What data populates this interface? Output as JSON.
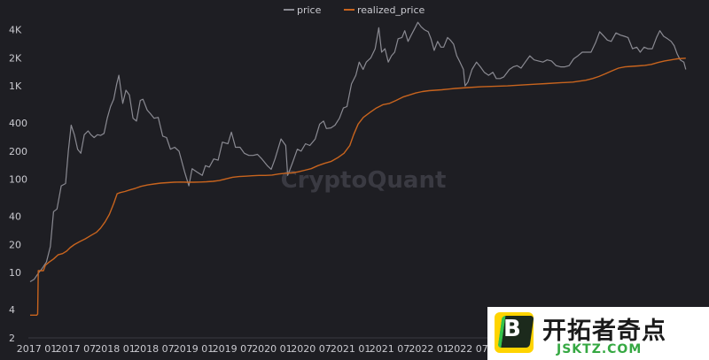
{
  "chart_data": {
    "type": "line",
    "title": "",
    "xlabel": "",
    "ylabel": "",
    "y_scale": "log",
    "ylim": [
      2,
      6000
    ],
    "y_ticks": [
      {
        "value": 2,
        "label": "2"
      },
      {
        "value": 4,
        "label": "4"
      },
      {
        "value": 10,
        "label": "10"
      },
      {
        "value": 20,
        "label": "20"
      },
      {
        "value": 40,
        "label": "40"
      },
      {
        "value": 100,
        "label": "100"
      },
      {
        "value": 200,
        "label": "200"
      },
      {
        "value": 400,
        "label": "400"
      },
      {
        "value": 1000,
        "label": "1K"
      },
      {
        "value": 2000,
        "label": "2K"
      },
      {
        "value": 4000,
        "label": "4K"
      }
    ],
    "x_ticks": [
      "2017 01",
      "2017 07",
      "2018 01",
      "2018 07",
      "2019 01",
      "2019 07",
      "2020 01",
      "2020 07",
      "2021 01",
      "2021 07",
      "2022 01",
      "2022 07"
    ],
    "legend": {
      "placement": "top-center",
      "entries": [
        "price",
        "realized_price"
      ]
    },
    "grid": false,
    "series": [
      {
        "name": "price",
        "color": "#8a8a92",
        "points": [
          [
            "2016-12-01",
            8
          ],
          [
            "2016-12-20",
            8.5
          ],
          [
            "2017-01-10",
            10
          ],
          [
            "2017-01-25",
            11
          ],
          [
            "2017-02-15",
            13
          ],
          [
            "2017-03-05",
            19
          ],
          [
            "2017-03-20",
            45
          ],
          [
            "2017-04-05",
            48
          ],
          [
            "2017-04-25",
            85
          ],
          [
            "2017-05-15",
            90
          ],
          [
            "2017-05-28",
            200
          ],
          [
            "2017-06-10",
            380
          ],
          [
            "2017-06-25",
            300
          ],
          [
            "2017-07-10",
            210
          ],
          [
            "2017-07-25",
            190
          ],
          [
            "2017-08-10",
            300
          ],
          [
            "2017-08-28",
            330
          ],
          [
            "2017-09-10",
            300
          ],
          [
            "2017-09-25",
            280
          ],
          [
            "2017-10-10",
            300
          ],
          [
            "2017-10-25",
            295
          ],
          [
            "2017-11-10",
            310
          ],
          [
            "2017-11-25",
            450
          ],
          [
            "2017-12-10",
            600
          ],
          [
            "2017-12-25",
            720
          ],
          [
            "2018-01-08",
            1050
          ],
          [
            "2018-01-18",
            1300
          ],
          [
            "2018-02-05",
            650
          ],
          [
            "2018-02-20",
            900
          ],
          [
            "2018-03-08",
            800
          ],
          [
            "2018-03-25",
            450
          ],
          [
            "2018-04-10",
            420
          ],
          [
            "2018-04-28",
            700
          ],
          [
            "2018-05-10",
            720
          ],
          [
            "2018-05-30",
            550
          ],
          [
            "2018-06-15",
            500
          ],
          [
            "2018-07-01",
            450
          ],
          [
            "2018-07-20",
            460
          ],
          [
            "2018-08-10",
            290
          ],
          [
            "2018-08-28",
            280
          ],
          [
            "2018-09-15",
            210
          ],
          [
            "2018-10-05",
            220
          ],
          [
            "2018-10-25",
            200
          ],
          [
            "2018-11-20",
            120
          ],
          [
            "2018-12-10",
            85
          ],
          [
            "2018-12-25",
            130
          ],
          [
            "2019-01-15",
            120
          ],
          [
            "2019-02-10",
            110
          ],
          [
            "2019-02-25",
            140
          ],
          [
            "2019-03-15",
            135
          ],
          [
            "2019-04-05",
            165
          ],
          [
            "2019-04-25",
            160
          ],
          [
            "2019-05-15",
            250
          ],
          [
            "2019-06-10",
            240
          ],
          [
            "2019-06-26",
            320
          ],
          [
            "2019-07-15",
            220
          ],
          [
            "2019-08-05",
            220
          ],
          [
            "2019-08-25",
            190
          ],
          [
            "2019-09-15",
            180
          ],
          [
            "2019-10-05",
            180
          ],
          [
            "2019-10-25",
            185
          ],
          [
            "2019-11-15",
            165
          ],
          [
            "2019-12-10",
            140
          ],
          [
            "2019-12-28",
            128
          ],
          [
            "2020-01-15",
            165
          ],
          [
            "2020-02-12",
            270
          ],
          [
            "2020-03-05",
            230
          ],
          [
            "2020-03-14",
            110
          ],
          [
            "2020-04-05",
            150
          ],
          [
            "2020-04-28",
            210
          ],
          [
            "2020-05-15",
            200
          ],
          [
            "2020-06-05",
            240
          ],
          [
            "2020-06-25",
            230
          ],
          [
            "2020-07-20",
            270
          ],
          [
            "2020-08-10",
            390
          ],
          [
            "2020-08-28",
            420
          ],
          [
            "2020-09-10",
            350
          ],
          [
            "2020-10-01",
            355
          ],
          [
            "2020-10-20",
            380
          ],
          [
            "2020-11-10",
            450
          ],
          [
            "2020-11-28",
            580
          ],
          [
            "2020-12-15",
            600
          ],
          [
            "2021-01-05",
            1050
          ],
          [
            "2021-01-25",
            1300
          ],
          [
            "2021-02-10",
            1800
          ],
          [
            "2021-02-28",
            1500
          ],
          [
            "2021-03-15",
            1800
          ],
          [
            "2021-04-05",
            2000
          ],
          [
            "2021-04-25",
            2500
          ],
          [
            "2021-05-12",
            4200
          ],
          [
            "2021-05-25",
            2300
          ],
          [
            "2021-06-10",
            2500
          ],
          [
            "2021-06-25",
            1800
          ],
          [
            "2021-07-10",
            2100
          ],
          [
            "2021-07-25",
            2300
          ],
          [
            "2021-08-10",
            3200
          ],
          [
            "2021-08-28",
            3300
          ],
          [
            "2021-09-10",
            3900
          ],
          [
            "2021-09-25",
            3000
          ],
          [
            "2021-10-10",
            3500
          ],
          [
            "2021-10-28",
            4200
          ],
          [
            "2021-11-10",
            4800
          ],
          [
            "2021-11-25",
            4300
          ],
          [
            "2021-12-10",
            4000
          ],
          [
            "2021-12-28",
            3800
          ],
          [
            "2022-01-10",
            3200
          ],
          [
            "2022-01-25",
            2400
          ],
          [
            "2022-02-10",
            3000
          ],
          [
            "2022-02-25",
            2600
          ],
          [
            "2022-03-10",
            2600
          ],
          [
            "2022-03-28",
            3300
          ],
          [
            "2022-04-10",
            3100
          ],
          [
            "2022-04-25",
            2800
          ],
          [
            "2022-05-10",
            2100
          ],
          [
            "2022-05-25",
            1800
          ],
          [
            "2022-06-10",
            1500
          ],
          [
            "2022-06-18",
            1000
          ],
          [
            "2022-07-01",
            1100
          ],
          [
            "2022-07-20",
            1500
          ],
          [
            "2022-08-10",
            1800
          ],
          [
            "2022-08-28",
            1600
          ],
          [
            "2022-09-15",
            1400
          ],
          [
            "2022-10-05",
            1300
          ],
          [
            "2022-10-25",
            1400
          ],
          [
            "2022-11-10",
            1200
          ],
          [
            "2022-11-28",
            1200
          ],
          [
            "2022-12-15",
            1250
          ],
          [
            "2023-01-10",
            1500
          ],
          [
            "2023-01-28",
            1600
          ],
          [
            "2023-02-15",
            1650
          ],
          [
            "2023-03-05",
            1550
          ],
          [
            "2023-03-25",
            1800
          ],
          [
            "2023-04-15",
            2100
          ],
          [
            "2023-05-05",
            1900
          ],
          [
            "2023-05-25",
            1850
          ],
          [
            "2023-06-15",
            1800
          ],
          [
            "2023-07-05",
            1900
          ],
          [
            "2023-07-25",
            1850
          ],
          [
            "2023-08-15",
            1650
          ],
          [
            "2023-09-05",
            1600
          ],
          [
            "2023-09-25",
            1600
          ],
          [
            "2023-10-15",
            1650
          ],
          [
            "2023-11-05",
            1950
          ],
          [
            "2023-11-25",
            2100
          ],
          [
            "2023-12-15",
            2300
          ],
          [
            "2024-01-05",
            2300
          ],
          [
            "2024-01-25",
            2300
          ],
          [
            "2024-02-15",
            2900
          ],
          [
            "2024-03-05",
            3800
          ],
          [
            "2024-03-20",
            3500
          ],
          [
            "2024-04-10",
            3100
          ],
          [
            "2024-04-28",
            3000
          ],
          [
            "2024-05-20",
            3700
          ],
          [
            "2024-06-10",
            3500
          ],
          [
            "2024-06-28",
            3400
          ],
          [
            "2024-07-15",
            3300
          ],
          [
            "2024-08-05",
            2500
          ],
          [
            "2024-08-25",
            2600
          ],
          [
            "2024-09-10",
            2300
          ],
          [
            "2024-09-28",
            2600
          ],
          [
            "2024-10-15",
            2500
          ],
          [
            "2024-11-05",
            2500
          ],
          [
            "2024-11-25",
            3300
          ],
          [
            "2024-12-10",
            3900
          ],
          [
            "2024-12-28",
            3400
          ],
          [
            "2025-01-15",
            3200
          ],
          [
            "2025-02-01",
            3000
          ],
          [
            "2025-02-15",
            2700
          ],
          [
            "2025-03-01",
            2200
          ],
          [
            "2025-03-15",
            1900
          ],
          [
            "2025-04-01",
            1800
          ],
          [
            "2025-04-10",
            1500
          ]
        ]
      },
      {
        "name": "realized_price",
        "color": "#c8641e",
        "points": [
          [
            "2016-12-01",
            3.5
          ],
          [
            "2017-01-01",
            3.5
          ],
          [
            "2017-01-05",
            3.6
          ],
          [
            "2017-01-08",
            10.5
          ],
          [
            "2017-02-01",
            10.5
          ],
          [
            "2017-02-10",
            12
          ],
          [
            "2017-02-28",
            13
          ],
          [
            "2017-03-20",
            14
          ],
          [
            "2017-04-10",
            15.5
          ],
          [
            "2017-05-01",
            16
          ],
          [
            "2017-05-20",
            17
          ],
          [
            "2017-06-05",
            18.5
          ],
          [
            "2017-06-25",
            20
          ],
          [
            "2017-07-20",
            21.5
          ],
          [
            "2017-08-15",
            23
          ],
          [
            "2017-09-10",
            25
          ],
          [
            "2017-10-05",
            27
          ],
          [
            "2017-10-25",
            30
          ],
          [
            "2017-11-15",
            35
          ],
          [
            "2017-12-05",
            42
          ],
          [
            "2017-12-25",
            55
          ],
          [
            "2018-01-10",
            70
          ],
          [
            "2018-01-25",
            72
          ],
          [
            "2018-02-15",
            74
          ],
          [
            "2018-03-10",
            77
          ],
          [
            "2018-04-05",
            80
          ],
          [
            "2018-05-01",
            84
          ],
          [
            "2018-06-01",
            87
          ],
          [
            "2018-07-01",
            89
          ],
          [
            "2018-08-01",
            91
          ],
          [
            "2018-09-01",
            92
          ],
          [
            "2018-10-01",
            93
          ],
          [
            "2018-11-01",
            93.5
          ],
          [
            "2018-12-01",
            93
          ],
          [
            "2019-01-01",
            93
          ],
          [
            "2019-02-01",
            93.5
          ],
          [
            "2019-03-01",
            94
          ],
          [
            "2019-04-01",
            95
          ],
          [
            "2019-05-01",
            97
          ],
          [
            "2019-06-01",
            101
          ],
          [
            "2019-07-01",
            105
          ],
          [
            "2019-08-01",
            107
          ],
          [
            "2019-09-01",
            108
          ],
          [
            "2019-10-01",
            109
          ],
          [
            "2019-11-01",
            110
          ],
          [
            "2019-12-01",
            110
          ],
          [
            "2020-01-01",
            111
          ],
          [
            "2020-02-01",
            114
          ],
          [
            "2020-03-01",
            116
          ],
          [
            "2020-04-01",
            117
          ],
          [
            "2020-05-01",
            120
          ],
          [
            "2020-06-01",
            125
          ],
          [
            "2020-07-01",
            130
          ],
          [
            "2020-08-01",
            140
          ],
          [
            "2020-09-01",
            148
          ],
          [
            "2020-10-01",
            155
          ],
          [
            "2020-11-01",
            170
          ],
          [
            "2020-12-01",
            190
          ],
          [
            "2020-12-28",
            230
          ],
          [
            "2021-01-15",
            300
          ],
          [
            "2021-02-05",
            390
          ],
          [
            "2021-03-01",
            460
          ],
          [
            "2021-04-01",
            520
          ],
          [
            "2021-05-01",
            580
          ],
          [
            "2021-06-01",
            630
          ],
          [
            "2021-07-01",
            650
          ],
          [
            "2021-08-01",
            700
          ],
          [
            "2021-09-01",
            760
          ],
          [
            "2021-10-01",
            800
          ],
          [
            "2021-11-01",
            840
          ],
          [
            "2021-12-01",
            870
          ],
          [
            "2022-01-01",
            890
          ],
          [
            "2022-03-01",
            910
          ],
          [
            "2022-05-01",
            940
          ],
          [
            "2022-07-01",
            960
          ],
          [
            "2022-09-01",
            980
          ],
          [
            "2022-11-01",
            990
          ],
          [
            "2023-01-01",
            1000
          ],
          [
            "2023-03-01",
            1020
          ],
          [
            "2023-05-01",
            1040
          ],
          [
            "2023-07-01",
            1060
          ],
          [
            "2023-09-01",
            1080
          ],
          [
            "2023-11-01",
            1100
          ],
          [
            "2024-01-01",
            1150
          ],
          [
            "2024-02-01",
            1200
          ],
          [
            "2024-03-01",
            1260
          ],
          [
            "2024-04-01",
            1350
          ],
          [
            "2024-05-01",
            1450
          ],
          [
            "2024-06-01",
            1550
          ],
          [
            "2024-07-01",
            1600
          ],
          [
            "2024-08-01",
            1620
          ],
          [
            "2024-09-01",
            1640
          ],
          [
            "2024-10-01",
            1660
          ],
          [
            "2024-11-01",
            1700
          ],
          [
            "2024-12-01",
            1780
          ],
          [
            "2025-01-01",
            1850
          ],
          [
            "2025-02-01",
            1900
          ],
          [
            "2025-03-01",
            1950
          ],
          [
            "2025-04-10",
            1980
          ]
        ]
      }
    ]
  },
  "watermark": "CryptoQuant",
  "logo": {
    "letter": "B",
    "title": "开拓者奇点",
    "url": "JSKTZ.COM",
    "colors": {
      "yellow": "#ffd400",
      "green": "#35c24a",
      "dark": "#1c2a1c"
    }
  }
}
